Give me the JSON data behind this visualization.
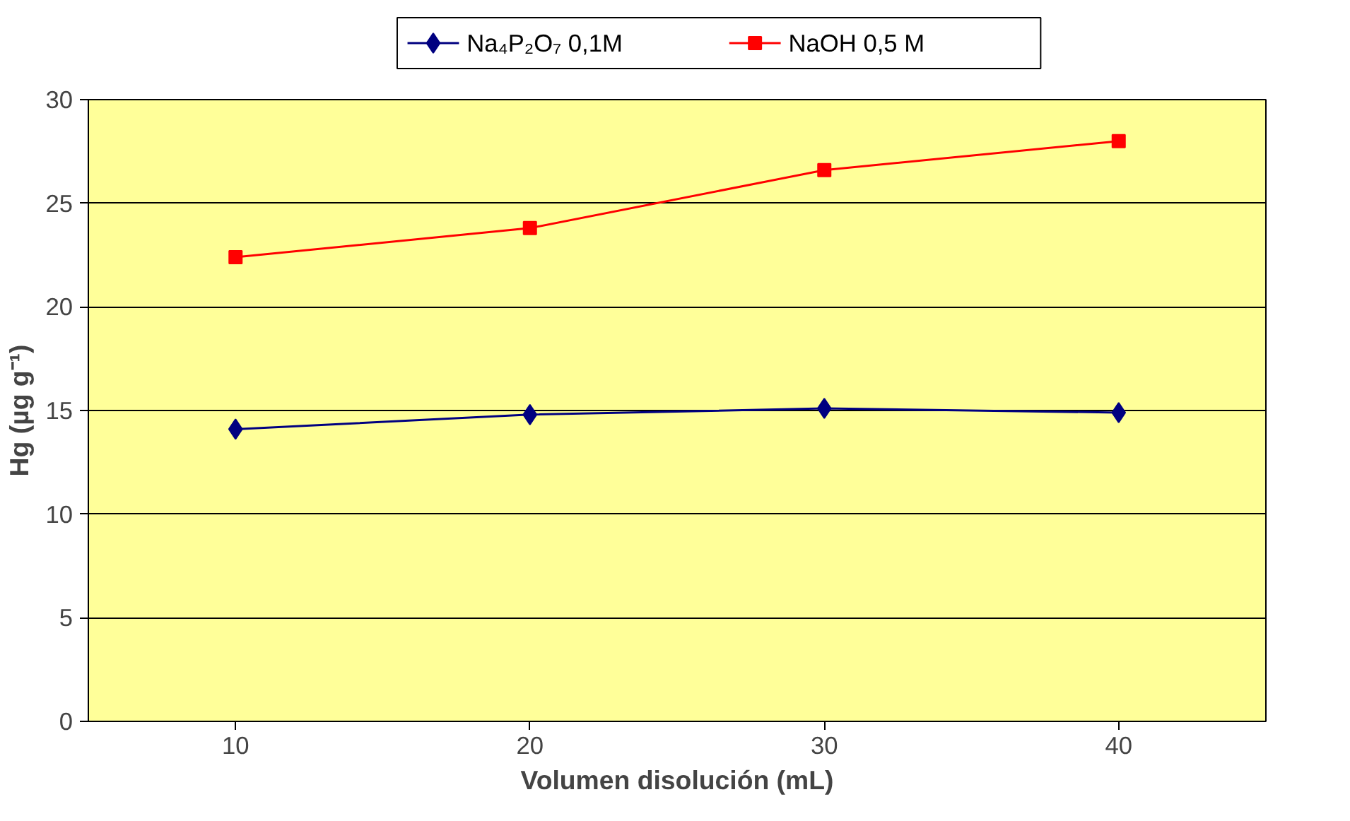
{
  "chart_data": {
    "type": "line",
    "xlabel": "Volumen disolución (mL)",
    "ylabel": "Hg (µg g⁻¹)",
    "categories": [
      "10",
      "20",
      "30",
      "40"
    ],
    "series": [
      {
        "name": "Na₄P₂O₇ 0,1M",
        "color": "#000080",
        "marker": "diamond",
        "values": [
          14.1,
          14.8,
          15.1,
          14.9
        ]
      },
      {
        "name": "NaOH 0,5 M",
        "color": "#ff0000",
        "marker": "square",
        "values": [
          22.4,
          23.8,
          26.6,
          28.0
        ]
      }
    ],
    "ylim": [
      0,
      30
    ],
    "yticks": [
      0,
      5,
      10,
      15,
      20,
      25,
      30
    ],
    "grid": "y",
    "legend": "top",
    "line_style": "solid"
  }
}
